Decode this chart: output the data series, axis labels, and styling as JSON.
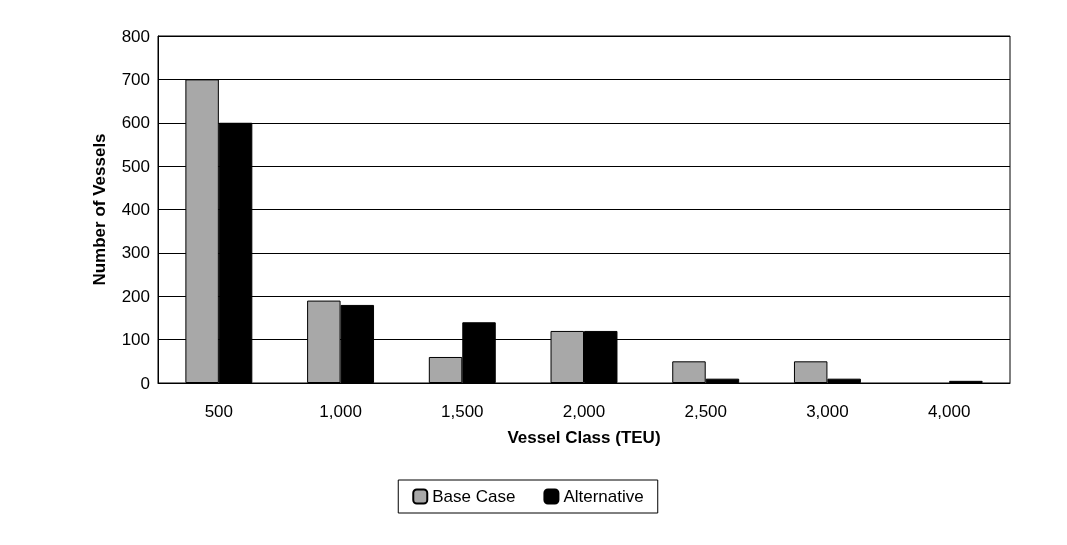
{
  "chart_data": {
    "type": "bar",
    "xlabel": "Vessel Class (TEU)",
    "ylabel": "Number of Vessels",
    "categories": [
      "500",
      "1,000",
      "1,500",
      "2,000",
      "2,500",
      "3,000",
      "4,000"
    ],
    "series": [
      {
        "name": "Base Case",
        "color": "#a8a8a8",
        "values": [
          700,
          190,
          60,
          120,
          50,
          50,
          null
        ]
      },
      {
        "name": "Alternative",
        "color": "#000000",
        "values": [
          600,
          180,
          140,
          120,
          10,
          10,
          5
        ]
      }
    ],
    "ylim": [
      0,
      800
    ],
    "yticks": [
      0,
      100,
      200,
      300,
      400,
      500,
      600,
      700,
      800
    ],
    "grid": "y",
    "legend": "bottom"
  }
}
